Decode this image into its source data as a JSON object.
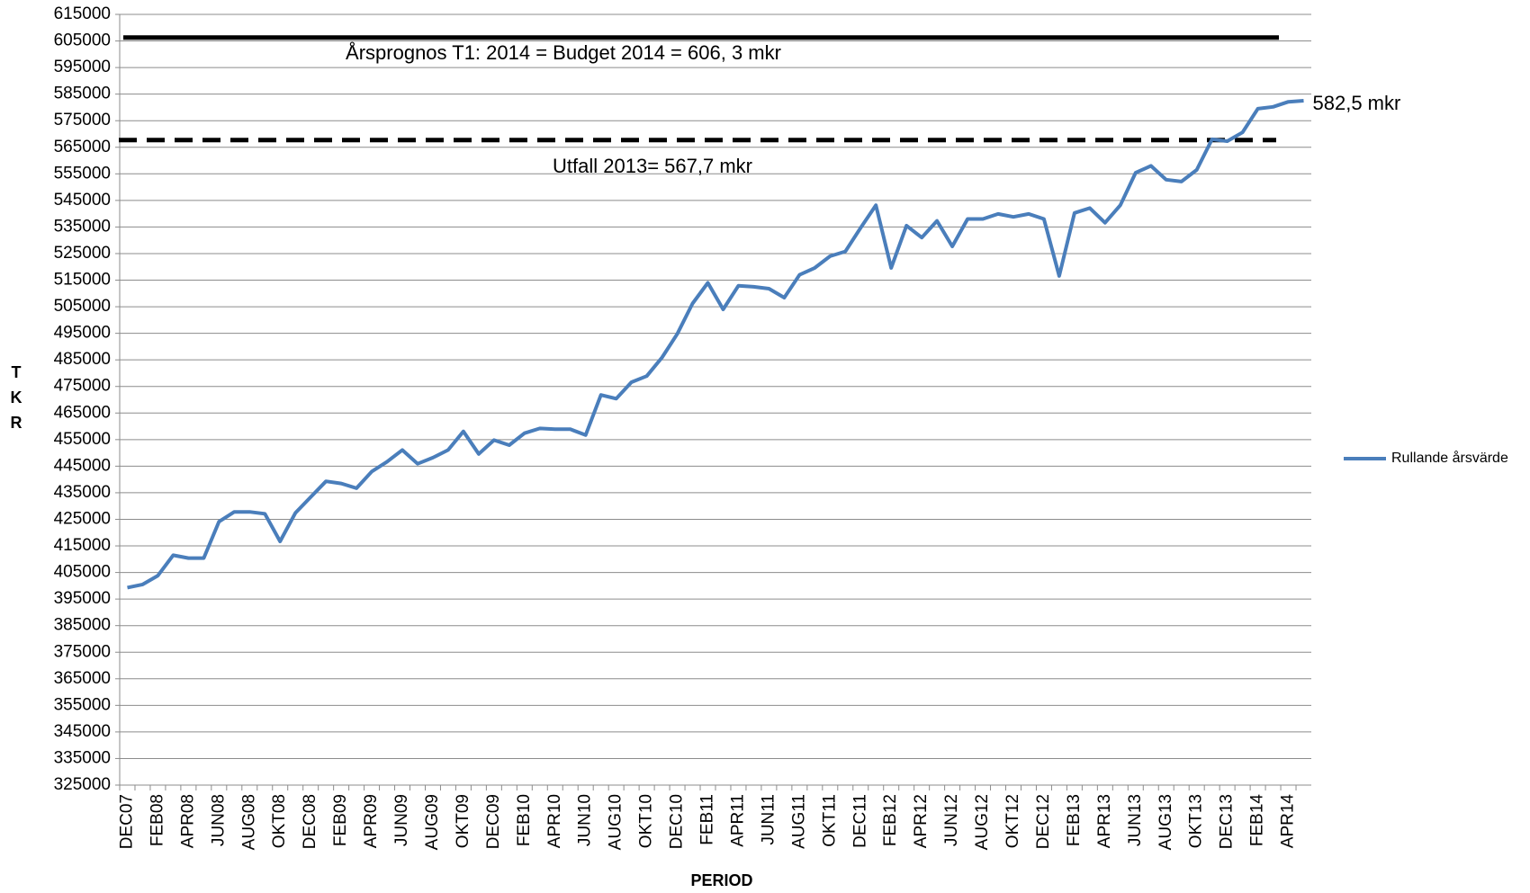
{
  "chart_data": {
    "type": "line",
    "xlabel": "PERIOD",
    "ylabel": "TKR",
    "categories": [
      "DEC07",
      null,
      "FEB08",
      null,
      "APR08",
      null,
      "JUN08",
      null,
      "AUG08",
      null,
      "OKT08",
      null,
      "DEC08",
      null,
      "FEB09",
      null,
      "APR09",
      null,
      "JUN09",
      null,
      "AUG09",
      null,
      "OKT09",
      null,
      "DEC09",
      null,
      "FEB10",
      null,
      "APR10",
      null,
      "JUN10",
      null,
      "AUG10",
      null,
      "OKT10",
      null,
      "DEC10",
      null,
      "FEB11",
      null,
      "APR11",
      null,
      "JUN11",
      null,
      "AUG11",
      null,
      "OKT11",
      null,
      "DEC11",
      null,
      "FEB12",
      null,
      "APR12",
      null,
      "JUN12",
      null,
      "AUG12",
      null,
      "OKT12",
      null,
      "DEC12",
      null,
      "FEB13",
      null,
      "APR13",
      null,
      "JUN13",
      null,
      "AUG13",
      null,
      "OKT13",
      null,
      "DEC13",
      null,
      "FEB14",
      null,
      "APR14",
      null
    ],
    "series": [
      {
        "name": "Rullande årsvärde",
        "color": "#4a7ebb",
        "values": [
          399300,
          400500,
          403800,
          411500,
          410400,
          410400,
          424100,
          427800,
          427800,
          427100,
          416700,
          427400,
          433400,
          439300,
          438500,
          436700,
          443000,
          446700,
          451100,
          445900,
          448200,
          451100,
          458100,
          449600,
          454800,
          452900,
          457400,
          459200,
          458900,
          458900,
          456700,
          471800,
          470400,
          476600,
          478900,
          485900,
          494800,
          506200,
          514000,
          504000,
          512900,
          512500,
          511800,
          508400,
          517000,
          519600,
          524000,
          525800,
          534700,
          543200,
          519600,
          535500,
          531000,
          537300,
          527700,
          538000,
          538000,
          539900,
          538800,
          539900,
          538000,
          516600,
          540300,
          542100,
          536600,
          543200,
          555400,
          558000,
          552800,
          552100,
          556500,
          568000,
          567300,
          570600,
          579500,
          580200,
          582100,
          582500
        ]
      }
    ],
    "reference_lines": [
      {
        "value": 606300,
        "label": "Årsprognos T1: 2014 = Budget 2014 = 606, 3 mkr",
        "style": "solid",
        "color": "#000000"
      },
      {
        "value": 567700,
        "label": "Utfall 2013= 567,7 mkr",
        "style": "dashed",
        "color": "#000000"
      }
    ],
    "end_label": "582,5 mkr",
    "ylim": [
      325000,
      615000
    ],
    "yticks": [
      325000,
      335000,
      345000,
      355000,
      365000,
      375000,
      385000,
      395000,
      405000,
      415000,
      425000,
      435000,
      445000,
      455000,
      465000,
      475000,
      485000,
      495000,
      505000,
      515000,
      525000,
      535000,
      545000,
      555000,
      565000,
      575000,
      585000,
      595000,
      605000,
      615000
    ],
    "grid": true,
    "legend": "right"
  }
}
